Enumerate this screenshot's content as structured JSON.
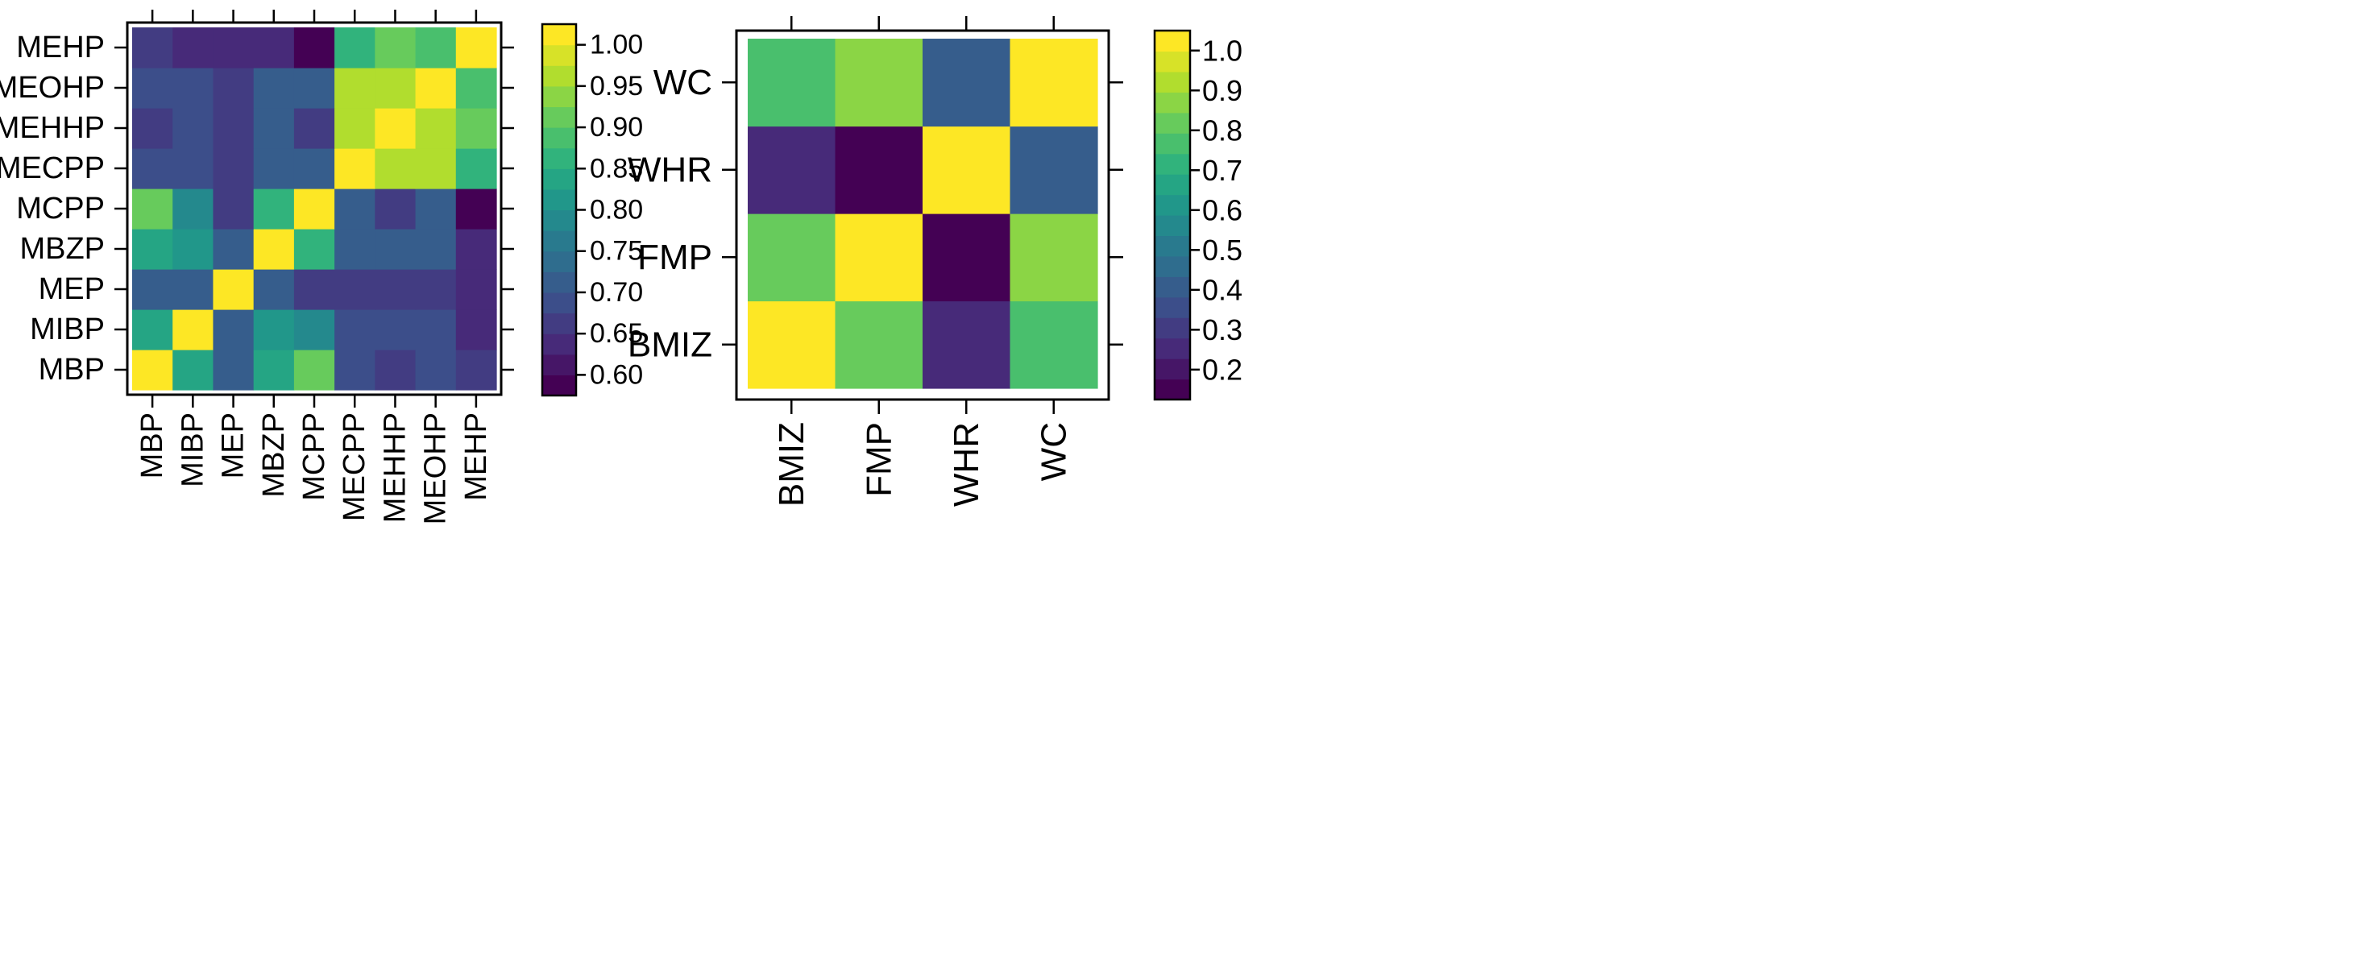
{
  "chart_data": [
    {
      "type": "heatmap",
      "title": "",
      "variables": [
        "MBP",
        "MIBP",
        "MEP",
        "MBZP",
        "MCPP",
        "MECPP",
        "MEHHP",
        "MEOHP",
        "MEHP"
      ],
      "x_categories": [
        "MBP",
        "MIBP",
        "MEP",
        "MBZP",
        "MCPP",
        "MECPP",
        "MEHHP",
        "MEOHP",
        "MEHP"
      ],
      "y_categories_bottom_to_top": [
        "MBP",
        "MIBP",
        "MEP",
        "MBZP",
        "MCPP",
        "MECPP",
        "MEHHP",
        "MEOHP",
        "MEHP"
      ],
      "matrix": [
        [
          1.0,
          0.84,
          0.7,
          0.83,
          0.91,
          0.69,
          0.66,
          0.69,
          0.66
        ],
        [
          0.84,
          1.0,
          0.7,
          0.82,
          0.79,
          0.69,
          0.69,
          0.69,
          0.64
        ],
        [
          0.7,
          0.7,
          1.0,
          0.72,
          0.66,
          0.66,
          0.66,
          0.65,
          0.64
        ],
        [
          0.83,
          0.82,
          0.72,
          1.0,
          0.85,
          0.72,
          0.7,
          0.72,
          0.64
        ],
        [
          0.91,
          0.79,
          0.66,
          0.85,
          1.0,
          0.7,
          0.67,
          0.7,
          0.59
        ],
        [
          0.69,
          0.69,
          0.66,
          0.72,
          0.7,
          1.0,
          0.97,
          0.97,
          0.86
        ],
        [
          0.66,
          0.69,
          0.66,
          0.7,
          0.67,
          0.97,
          1.0,
          0.97,
          0.9
        ],
        [
          0.69,
          0.69,
          0.65,
          0.72,
          0.7,
          0.97,
          0.97,
          1.0,
          0.89
        ],
        [
          0.66,
          0.64,
          0.64,
          0.64,
          0.59,
          0.86,
          0.9,
          0.89,
          1.0
        ]
      ],
      "colorbar": {
        "min": 0.575,
        "max": 1.025,
        "levels": 18,
        "ticks": [
          0.6,
          0.65,
          0.7,
          0.75,
          0.8,
          0.85,
          0.9,
          0.95,
          1.0
        ],
        "tick_labels": [
          "0.60",
          "0.65",
          "0.70",
          "0.75",
          "0.80",
          "0.85",
          "0.90",
          "0.95",
          "1.00"
        ]
      }
    },
    {
      "type": "heatmap",
      "title": "",
      "variables": [
        "BMIZ",
        "FMP",
        "WHR",
        "WC"
      ],
      "x_categories": [
        "BMIZ",
        "FMP",
        "WHR",
        "WC"
      ],
      "y_categories_bottom_to_top": [
        "BMIZ",
        "FMP",
        "WHR",
        "WC"
      ],
      "matrix": [
        [
          1.0,
          0.8,
          0.23,
          0.75
        ],
        [
          0.8,
          1.0,
          0.17,
          0.85
        ],
        [
          0.23,
          0.17,
          1.0,
          0.4
        ],
        [
          0.75,
          0.85,
          0.4,
          1.0
        ]
      ],
      "colorbar": {
        "min": 0.125,
        "max": 1.05,
        "levels": 18,
        "ticks": [
          0.2,
          0.3,
          0.4,
          0.5,
          0.6,
          0.7,
          0.8,
          0.9,
          1.0
        ],
        "tick_labels": [
          "0.2",
          "0.3",
          "0.4",
          "0.5",
          "0.6",
          "0.7",
          "0.8",
          "0.9",
          "1.0"
        ]
      }
    }
  ]
}
